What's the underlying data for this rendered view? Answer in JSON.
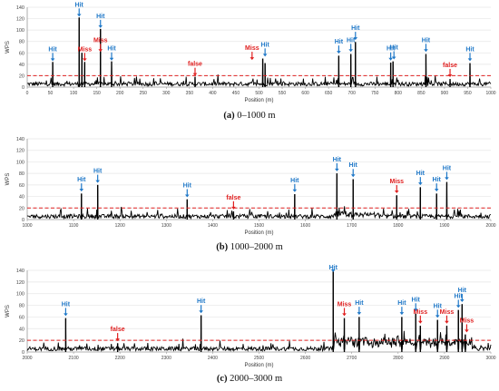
{
  "figure": {
    "colors": {
      "signal": "#000000",
      "threshold": "#e02020",
      "hit": "#1f78c8",
      "miss": "#e02020",
      "axis": "#999999",
      "grid": "#e6e6e6"
    }
  },
  "chart_data": [
    {
      "type": "line",
      "caption_letter": "(a)",
      "caption_rest": " 0–1000 m",
      "xlabel": "Position (m)",
      "ylabel": "WPS",
      "xlim": [
        0,
        1000
      ],
      "ylim": [
        0,
        140
      ],
      "xticks": [
        "0",
        "50",
        "100",
        "150",
        "200",
        "250",
        "300",
        "350",
        "400",
        "450",
        "500",
        "550",
        "600",
        "650",
        "700",
        "750",
        "800",
        "850",
        "900",
        "950",
        "1000"
      ],
      "yticks": [
        "0",
        "20",
        "40",
        "60",
        "80",
        "100",
        "120",
        "140"
      ],
      "grid": true,
      "threshold": 20,
      "spikes": [
        {
          "x": 55,
          "y": 44
        },
        {
          "x": 112,
          "y": 122
        },
        {
          "x": 118,
          "y": 60
        },
        {
          "x": 124,
          "y": 44
        },
        {
          "x": 158,
          "y": 102
        },
        {
          "x": 182,
          "y": 45
        },
        {
          "x": 362,
          "y": 18
        },
        {
          "x": 508,
          "y": 50
        },
        {
          "x": 513,
          "y": 42
        },
        {
          "x": 672,
          "y": 55
        },
        {
          "x": 698,
          "y": 58
        },
        {
          "x": 708,
          "y": 79
        },
        {
          "x": 784,
          "y": 43
        },
        {
          "x": 789,
          "y": 45
        },
        {
          "x": 860,
          "y": 58
        },
        {
          "x": 912,
          "y": 14
        },
        {
          "x": 955,
          "y": 42
        }
      ],
      "annotations": [
        {
          "label": "Hit",
          "kind": "hit",
          "x": 55,
          "y": 44
        },
        {
          "label": "Hit",
          "kind": "hit",
          "x": 112,
          "y": 122
        },
        {
          "label": "Miss",
          "kind": "miss",
          "x": 124,
          "y": 44
        },
        {
          "label": "Hit",
          "kind": "hit",
          "x": 158,
          "y": 102
        },
        {
          "label": "Miss",
          "kind": "miss",
          "x": 158,
          "y": 60
        },
        {
          "label": "Hit",
          "kind": "hit",
          "x": 182,
          "y": 45
        },
        {
          "label": "false",
          "kind": "miss",
          "x": 362,
          "y": 18
        },
        {
          "label": "Miss",
          "kind": "miss",
          "x": 485,
          "y": 46
        },
        {
          "label": "Hit",
          "kind": "hit",
          "x": 513,
          "y": 52
        },
        {
          "label": "Hit",
          "kind": "hit",
          "x": 672,
          "y": 57
        },
        {
          "label": "Hit",
          "kind": "hit",
          "x": 698,
          "y": 60
        },
        {
          "label": "Hit",
          "kind": "hit",
          "x": 708,
          "y": 81
        },
        {
          "label": "Hit",
          "kind": "hit",
          "x": 784,
          "y": 45
        },
        {
          "label": "Hit",
          "kind": "hit",
          "x": 791,
          "y": 47
        },
        {
          "label": "Hit",
          "kind": "hit",
          "x": 860,
          "y": 60
        },
        {
          "label": "false",
          "kind": "miss",
          "x": 912,
          "y": 16
        },
        {
          "label": "Hit",
          "kind": "hit",
          "x": 955,
          "y": 44
        }
      ]
    },
    {
      "type": "line",
      "caption_letter": "(b)",
      "caption_rest": " 1000–2000 m",
      "xlabel": "Position (m)",
      "ylabel": "WPS",
      "xlim": [
        1000,
        2000
      ],
      "ylim": [
        0,
        140
      ],
      "xticks": [
        "1000",
        "1100",
        "1200",
        "1300",
        "1400",
        "1500",
        "1600",
        "1700",
        "1800",
        "1900",
        "2000"
      ],
      "yticks": [
        "0",
        "20",
        "40",
        "60",
        "80",
        "100",
        "120",
        "140"
      ],
      "grid": true,
      "threshold": 20,
      "spikes": [
        {
          "x": 1117,
          "y": 45
        },
        {
          "x": 1152,
          "y": 60
        },
        {
          "x": 1345,
          "y": 35
        },
        {
          "x": 1445,
          "y": 14
        },
        {
          "x": 1577,
          "y": 44
        },
        {
          "x": 1668,
          "y": 80
        },
        {
          "x": 1703,
          "y": 70
        },
        {
          "x": 1797,
          "y": 42
        },
        {
          "x": 1848,
          "y": 56
        },
        {
          "x": 1883,
          "y": 45
        },
        {
          "x": 1905,
          "y": 65
        }
      ],
      "annotations": [
        {
          "label": "Hit",
          "kind": "hit",
          "x": 1117,
          "y": 47
        },
        {
          "label": "Hit",
          "kind": "hit",
          "x": 1152,
          "y": 62
        },
        {
          "label": "Hit",
          "kind": "hit",
          "x": 1345,
          "y": 37
        },
        {
          "label": "false",
          "kind": "miss",
          "x": 1445,
          "y": 16
        },
        {
          "label": "Hit",
          "kind": "hit",
          "x": 1577,
          "y": 46
        },
        {
          "label": "Hit",
          "kind": "hit",
          "x": 1668,
          "y": 82
        },
        {
          "label": "Hit",
          "kind": "hit",
          "x": 1703,
          "y": 72
        },
        {
          "label": "Miss",
          "kind": "miss",
          "x": 1797,
          "y": 44
        },
        {
          "label": "Hit",
          "kind": "hit",
          "x": 1848,
          "y": 58
        },
        {
          "label": "Hit",
          "kind": "hit",
          "x": 1883,
          "y": 47
        },
        {
          "label": "Hit",
          "kind": "hit",
          "x": 1905,
          "y": 67
        }
      ]
    },
    {
      "type": "line",
      "caption_letter": "(c)",
      "caption_rest": " 2000–3000 m",
      "xlabel": "Position (m)",
      "ylabel": "WPS",
      "xlim": [
        2000,
        3000
      ],
      "ylim": [
        0,
        140
      ],
      "xticks": [
        "2000",
        "2100",
        "2200",
        "2300",
        "2400",
        "2500",
        "2600",
        "2700",
        "2800",
        "2900",
        "3000"
      ],
      "yticks": [
        "0",
        "20",
        "40",
        "60",
        "80",
        "100",
        "120",
        "140"
      ],
      "grid": true,
      "threshold": 20,
      "spikes": [
        {
          "x": 2083,
          "y": 58
        },
        {
          "x": 2195,
          "y": 15
        },
        {
          "x": 2375,
          "y": 63
        },
        {
          "x": 2660,
          "y": 140
        },
        {
          "x": 2684,
          "y": 58
        },
        {
          "x": 2716,
          "y": 60
        },
        {
          "x": 2808,
          "y": 60
        },
        {
          "x": 2838,
          "y": 66
        },
        {
          "x": 2848,
          "y": 45
        },
        {
          "x": 2885,
          "y": 55
        },
        {
          "x": 2905,
          "y": 45
        },
        {
          "x": 2930,
          "y": 72
        },
        {
          "x": 2938,
          "y": 82
        },
        {
          "x": 2945,
          "y": 30
        }
      ],
      "annotations": [
        {
          "label": "Hit",
          "kind": "hit",
          "x": 2083,
          "y": 60
        },
        {
          "label": "false",
          "kind": "miss",
          "x": 2195,
          "y": 17
        },
        {
          "label": "Hit",
          "kind": "hit",
          "x": 2375,
          "y": 65
        },
        {
          "label": "Hit",
          "kind": "hit",
          "x": 2660,
          "y": 142
        },
        {
          "label": "Miss",
          "kind": "miss",
          "x": 2684,
          "y": 60
        },
        {
          "label": "Hit",
          "kind": "hit",
          "x": 2716,
          "y": 62
        },
        {
          "label": "Hit",
          "kind": "hit",
          "x": 2808,
          "y": 62
        },
        {
          "label": "Hit",
          "kind": "hit",
          "x": 2838,
          "y": 68
        },
        {
          "label": "Miss",
          "kind": "miss",
          "x": 2848,
          "y": 47
        },
        {
          "label": "Hit",
          "kind": "hit",
          "x": 2885,
          "y": 57
        },
        {
          "label": "Miss",
          "kind": "miss",
          "x": 2905,
          "y": 47
        },
        {
          "label": "Hit",
          "kind": "hit",
          "x": 2930,
          "y": 74
        },
        {
          "label": "Hit",
          "kind": "hit",
          "x": 2938,
          "y": 84
        },
        {
          "label": "Miss",
          "kind": "miss",
          "x": 2948,
          "y": 32
        }
      ]
    }
  ]
}
